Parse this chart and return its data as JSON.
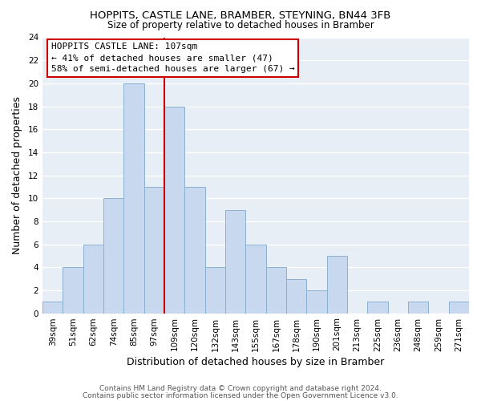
{
  "title": "HOPPITS, CASTLE LANE, BRAMBER, STEYNING, BN44 3FB",
  "subtitle": "Size of property relative to detached houses in Bramber",
  "xlabel": "Distribution of detached houses by size in Bramber",
  "ylabel": "Number of detached properties",
  "footer_line1": "Contains HM Land Registry data © Crown copyright and database right 2024.",
  "footer_line2": "Contains public sector information licensed under the Open Government Licence v3.0.",
  "annotation_title": "HOPPITS CASTLE LANE: 107sqm",
  "annotation_line2": "← 41% of detached houses are smaller (47)",
  "annotation_line3": "58% of semi-detached houses are larger (67) →",
  "bar_labels": [
    "39sqm",
    "51sqm",
    "62sqm",
    "74sqm",
    "85sqm",
    "97sqm",
    "109sqm",
    "120sqm",
    "132sqm",
    "143sqm",
    "155sqm",
    "167sqm",
    "178sqm",
    "190sqm",
    "201sqm",
    "213sqm",
    "225sqm",
    "236sqm",
    "248sqm",
    "259sqm",
    "271sqm"
  ],
  "bar_heights": [
    1,
    4,
    6,
    10,
    20,
    11,
    18,
    11,
    4,
    9,
    6,
    4,
    3,
    2,
    5,
    0,
    1,
    0,
    1,
    0,
    1
  ],
  "bar_color": "#c8d8ee",
  "bar_edge_color": "#8ab0d0",
  "vline_color": "#cc0000",
  "ylim": [
    0,
    24
  ],
  "yticks": [
    0,
    2,
    4,
    6,
    8,
    10,
    12,
    14,
    16,
    18,
    20,
    22,
    24
  ],
  "background_color": "#ffffff",
  "plot_bg_color": "#e8eef5",
  "grid_color": "#ffffff",
  "annotation_box_color": "#ffffff",
  "annotation_box_edge": "#cc0000",
  "title_fontsize": 9.5,
  "subtitle_fontsize": 8.5,
  "axis_label_fontsize": 9,
  "tick_fontsize": 7.5,
  "annotation_fontsize": 8,
  "footer_fontsize": 6.5
}
